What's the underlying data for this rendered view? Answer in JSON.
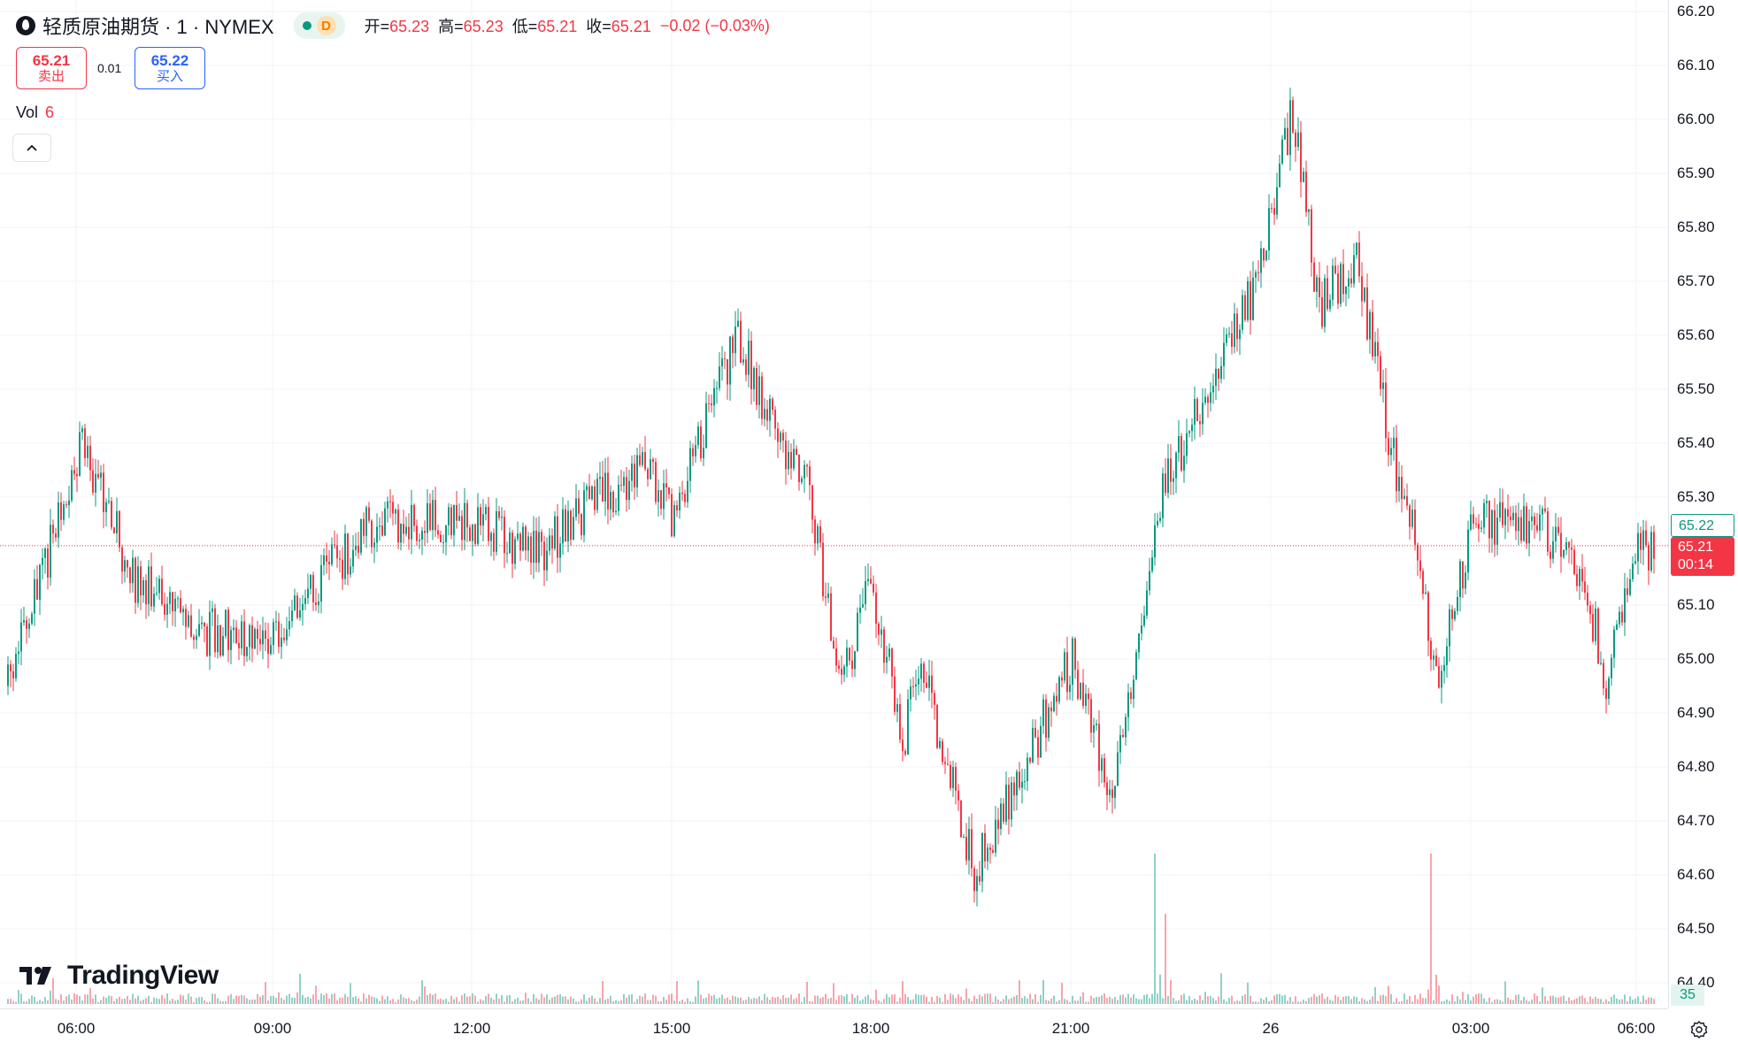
{
  "symbol": {
    "title": "轻质原油期货 · 1 · NYMEX",
    "status_letter": "D"
  },
  "ohlc": {
    "open_label": "开=",
    "open": "65.23",
    "high_label": "高=",
    "high": "65.23",
    "low_label": "低=",
    "low": "65.21",
    "close_label": "收=",
    "close": "65.21",
    "change": "−0.02 (−0.03%)"
  },
  "trade": {
    "sell_price": "65.21",
    "sell_label": "卖出",
    "spread": "0.01",
    "buy_price": "65.22",
    "buy_label": "买入"
  },
  "volume_legend": {
    "label": "Vol",
    "value": "6"
  },
  "logo_text": "TradingView",
  "price_axis": {
    "ticks": [
      "66.20",
      "66.10",
      "66.00",
      "65.90",
      "65.80",
      "65.70",
      "65.60",
      "65.50",
      "65.40",
      "65.30",
      "65.10",
      "65.00",
      "64.90",
      "64.80",
      "64.70",
      "64.60",
      "64.50",
      "64.40"
    ],
    "ask_tag": "65.22",
    "bid_tag": "65.21",
    "countdown": "00:14",
    "volume_tag": "35"
  },
  "time_axis": {
    "ticks": [
      "06:00",
      "09:00",
      "12:00",
      "15:00",
      "18:00",
      "21:00",
      "26",
      "03:00",
      "06:00"
    ]
  },
  "colors": {
    "up": "#089981",
    "down": "#f23645",
    "grid": "#f0f3fa",
    "ask": "#089981",
    "bid": "#f23645"
  },
  "icons": {
    "symbol": "oil-drop-icon",
    "collapse": "chevron-up-icon",
    "settings": "gear-icon",
    "logo": "tradingview-logo-icon"
  },
  "chart_data": {
    "type": "candlestick",
    "timeframe": "1 minute",
    "y_range": [
      64.4,
      66.2
    ],
    "last_price": 65.21,
    "close_path": [
      [
        "06:00",
        64.95
      ],
      [
        "06:10",
        65.4
      ],
      [
        "07:00",
        65.15
      ],
      [
        "08:00",
        65.05
      ],
      [
        "09:00",
        65.05
      ],
      [
        "10:00",
        65.25
      ],
      [
        "11:00",
        65.25
      ],
      [
        "12:00",
        65.2
      ],
      [
        "13:00",
        65.28
      ],
      [
        "14:00",
        65.35
      ],
      [
        "14:30",
        65.25
      ],
      [
        "15:00",
        65.45
      ],
      [
        "15:30",
        65.6
      ],
      [
        "16:00",
        65.45
      ],
      [
        "17:00",
        65.3
      ],
      [
        "17:30",
        64.95
      ],
      [
        "18:00",
        65.15
      ],
      [
        "18:30",
        64.85
      ],
      [
        "19:00",
        65.0
      ],
      [
        "20:00",
        64.6
      ],
      [
        "21:00",
        65.0
      ],
      [
        "22:00",
        64.75
      ],
      [
        "23:00",
        65.3
      ],
      [
        "00:00",
        65.55
      ],
      [
        "00:30",
        65.7
      ],
      [
        "00:45",
        66.02
      ],
      [
        "01:00",
        65.65
      ],
      [
        "01:30",
        65.75
      ],
      [
        "02:00",
        65.4
      ],
      [
        "02:30",
        65.2
      ],
      [
        "02:40",
        64.95
      ],
      [
        "03:00",
        65.25
      ],
      [
        "04:00",
        65.25
      ],
      [
        "05:00",
        65.15
      ],
      [
        "05:30",
        64.95
      ],
      [
        "06:00",
        65.2
      ],
      [
        "06:40",
        65.21
      ]
    ],
    "volume_spikes": [
      [
        "23:00",
        1.0
      ],
      [
        "23:20",
        0.6
      ],
      [
        "02:50",
        1.0
      ]
    ]
  }
}
